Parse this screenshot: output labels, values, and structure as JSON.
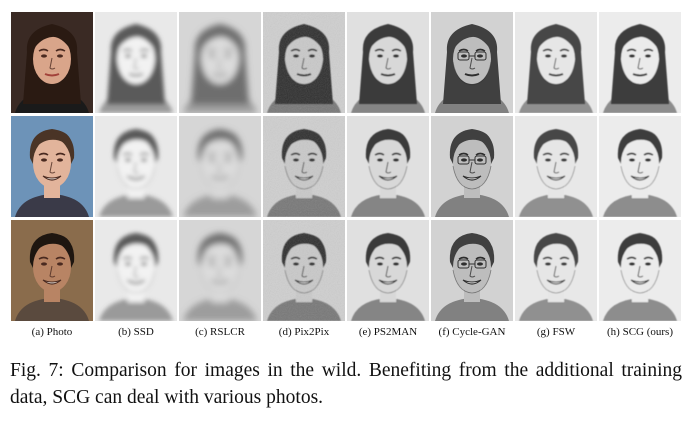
{
  "figure": {
    "columns": [
      {
        "key": "photo",
        "label": "(a) Photo"
      },
      {
        "key": "ssd",
        "label": "(b) SSD"
      },
      {
        "key": "rslcr",
        "label": "(c) RSLCR"
      },
      {
        "key": "pix2pix",
        "label": "(d) Pix2Pix"
      },
      {
        "key": "ps2man",
        "label": "(e) PS2MAN"
      },
      {
        "key": "cyclegan",
        "label": "(f) Cycle-GAN"
      },
      {
        "key": "fsw",
        "label": "(g) FSW"
      },
      {
        "key": "scg",
        "label": "(h) SCG (ours)"
      }
    ],
    "rows": [
      {
        "subject": "woman-long-dark-hair",
        "hair": "#2a1a12",
        "skin": "#d9a58a",
        "bg": "#3a2a24",
        "shirt": "#1a1a1a"
      },
      {
        "subject": "man-smiling-short-hair",
        "hair": "#4a3426",
        "skin": "#e2b49b",
        "bg": "#6d93b8",
        "shirt": "#3a3a48"
      },
      {
        "subject": "man-dark-hair-smiling",
        "hair": "#1e1610",
        "skin": "#b88464",
        "bg": "#8a6c4c",
        "shirt": "#5a4a3e"
      }
    ]
  },
  "caption": {
    "label": "Fig. 7:",
    "text": "Comparison for images in the wild. Benefiting from the additional training data, SCG can deal with various photos."
  }
}
